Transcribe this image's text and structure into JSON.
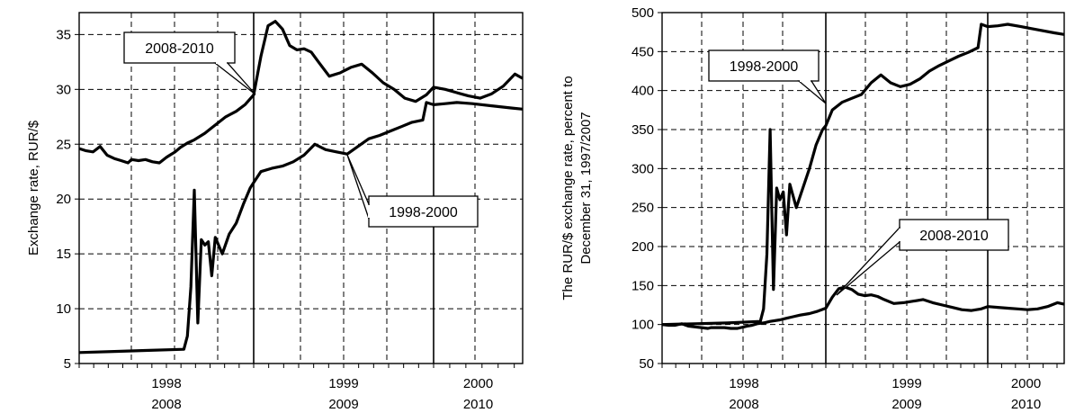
{
  "chart_data": [
    {
      "type": "line",
      "title": "",
      "ylabel": "Exchange rate, RUR/$",
      "xlabel": "",
      "ylim": [
        5,
        37
      ],
      "yticks": [
        5,
        10,
        15,
        20,
        25,
        30,
        35
      ],
      "x_periods": [
        {
          "top": "1998",
          "bottom": "2008"
        },
        {
          "top": "1999",
          "bottom": "2009"
        },
        {
          "top": "2000",
          "bottom": "2010"
        }
      ],
      "grid": true,
      "series": [
        {
          "name": "2008-2010",
          "x": [
            0,
            0.04,
            0.08,
            0.12,
            0.16,
            0.2,
            0.24,
            0.28,
            0.3,
            0.34,
            0.38,
            0.42,
            0.46,
            0.5,
            0.52,
            0.55,
            0.58,
            0.62,
            0.66,
            0.72,
            0.76,
            0.8,
            0.84,
            0.9,
            0.95,
            1.0,
            1.04,
            1.08,
            1.12,
            1.16,
            1.2,
            1.24,
            1.28,
            1.32,
            1.36,
            1.42,
            1.48,
            1.54,
            1.6,
            1.66,
            1.72,
            1.78,
            1.84,
            1.9,
            1.96,
            2.0,
            2.06,
            2.12,
            2.18,
            2.24,
            2.3,
            2.36,
            2.42,
            2.46
          ],
          "y": [
            24.6,
            24.4,
            24.3,
            24.8,
            24.0,
            23.7,
            23.5,
            23.3,
            23.6,
            23.5,
            23.6,
            23.4,
            23.3,
            23.8,
            24.0,
            24.3,
            24.7,
            25.1,
            25.4,
            26.0,
            26.5,
            27.0,
            27.5,
            28.0,
            28.6,
            29.5,
            33.0,
            35.8,
            36.2,
            35.5,
            34.0,
            33.6,
            33.7,
            33.4,
            32.5,
            31.2,
            31.5,
            32.0,
            32.3,
            31.5,
            30.6,
            30.0,
            29.2,
            28.9,
            29.5,
            30.2,
            30.0,
            29.7,
            29.4,
            29.2,
            29.6,
            30.3,
            31.4,
            31.0
          ],
          "callout": "2008-2010"
        },
        {
          "name": "1998-2000",
          "x": [
            0,
            0.2,
            0.4,
            0.6,
            0.62,
            0.64,
            0.66,
            0.68,
            0.7,
            0.72,
            0.74,
            0.76,
            0.78,
            0.82,
            0.86,
            0.9,
            0.94,
            0.98,
            1.0,
            1.04,
            1.1,
            1.16,
            1.22,
            1.28,
            1.34,
            1.4,
            1.46,
            1.52,
            1.58,
            1.64,
            1.7,
            1.76,
            1.82,
            1.88,
            1.94,
            1.96,
            2.0,
            2.06,
            2.12,
            2.2,
            2.3,
            2.4,
            2.46
          ],
          "y": [
            6.0,
            6.1,
            6.2,
            6.3,
            7.5,
            12.0,
            20.8,
            8.7,
            16.3,
            15.8,
            16.1,
            13.0,
            16.5,
            15.0,
            16.8,
            17.8,
            19.5,
            21.0,
            21.5,
            22.5,
            22.8,
            23.0,
            23.4,
            24.0,
            25.0,
            24.5,
            24.3,
            24.1,
            24.8,
            25.5,
            25.8,
            26.2,
            26.6,
            27.0,
            27.2,
            28.8,
            28.6,
            28.7,
            28.8,
            28.7,
            28.5,
            28.3,
            28.2
          ],
          "callout": "1998-2000"
        }
      ]
    },
    {
      "type": "line",
      "title": "",
      "ylabel": "The RUR/$ exchange rate, percent to December 31, 1997/2007",
      "ylabel_lines": [
        "The RUR/$ exchange rate, percent to",
        "December 31, 1997/2007"
      ],
      "xlabel": "",
      "ylim": [
        50,
        500
      ],
      "yticks": [
        50,
        100,
        150,
        200,
        250,
        300,
        350,
        400,
        450,
        500
      ],
      "x_periods": [
        {
          "top": "1998",
          "bottom": "2008"
        },
        {
          "top": "1999",
          "bottom": "2009"
        },
        {
          "top": "2000",
          "bottom": "2010"
        }
      ],
      "grid": true,
      "series": [
        {
          "name": "1998-2000",
          "x": [
            0,
            0.2,
            0.4,
            0.6,
            0.62,
            0.64,
            0.66,
            0.68,
            0.7,
            0.72,
            0.74,
            0.76,
            0.78,
            0.82,
            0.86,
            0.9,
            0.94,
            0.98,
            1.0,
            1.04,
            1.1,
            1.16,
            1.22,
            1.28,
            1.34,
            1.4,
            1.46,
            1.52,
            1.58,
            1.64,
            1.7,
            1.76,
            1.82,
            1.88,
            1.94,
            1.96,
            2.0,
            2.06,
            2.12,
            2.2,
            2.3,
            2.4,
            2.46
          ],
          "y": [
            100,
            101,
            102,
            104,
            120,
            190,
            350,
            145,
            275,
            260,
            270,
            215,
            280,
            250,
            275,
            300,
            330,
            350,
            355,
            375,
            385,
            390,
            395,
            410,
            420,
            410,
            405,
            408,
            415,
            425,
            432,
            438,
            444,
            449,
            455,
            485,
            482,
            483,
            485,
            482,
            478,
            474,
            472
          ],
          "callout": "1998-2000"
        },
        {
          "name": "2008-2010",
          "x": [
            0,
            0.04,
            0.08,
            0.12,
            0.16,
            0.2,
            0.24,
            0.28,
            0.3,
            0.34,
            0.38,
            0.42,
            0.46,
            0.5,
            0.52,
            0.55,
            0.58,
            0.62,
            0.66,
            0.72,
            0.76,
            0.8,
            0.84,
            0.9,
            0.95,
            1.0,
            1.04,
            1.08,
            1.12,
            1.16,
            1.2,
            1.24,
            1.28,
            1.32,
            1.36,
            1.42,
            1.48,
            1.54,
            1.6,
            1.66,
            1.72,
            1.78,
            1.84,
            1.9,
            1.96,
            2.0,
            2.06,
            2.12,
            2.18,
            2.24,
            2.3,
            2.36,
            2.42,
            2.46
          ],
          "y": [
            100,
            99,
            99,
            101,
            98,
            97,
            96,
            95,
            96,
            96,
            96,
            95,
            95,
            97,
            98,
            99,
            101,
            102,
            104,
            106,
            108,
            110,
            112,
            114,
            117,
            121,
            135,
            146,
            148,
            145,
            139,
            137,
            138,
            136,
            132,
            127,
            128,
            130,
            132,
            128,
            125,
            122,
            119,
            118,
            120,
            123,
            122,
            121,
            120,
            119,
            120,
            123,
            128,
            126
          ],
          "callout": "2008-2010"
        }
      ]
    }
  ]
}
